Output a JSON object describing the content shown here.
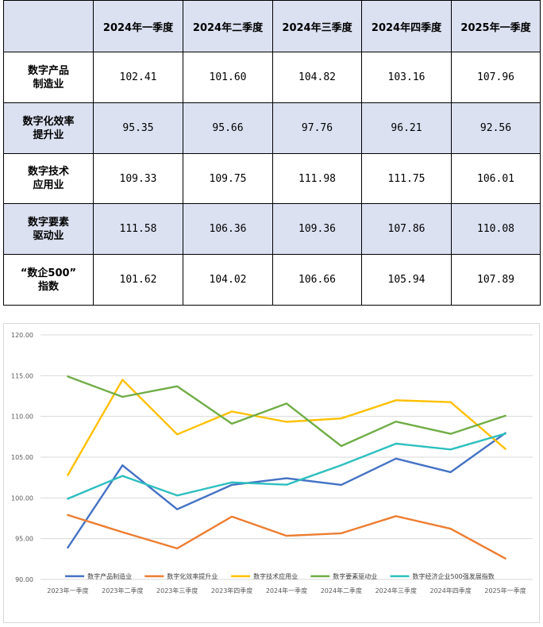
{
  "table": {
    "headers": [
      "2024年一季度",
      "2024年二季度",
      "2024年三季度",
      "2024年四季度",
      "2025年一季度"
    ],
    "rows": [
      {
        "label": [
          "数字产品",
          "制造业"
        ],
        "values": [
          "102.41",
          "101.60",
          "104.82",
          "103.16",
          "107.96"
        ]
      },
      {
        "label": [
          "数字化效率",
          "提升业"
        ],
        "values": [
          "95.35",
          "95.66",
          "97.76",
          "96.21",
          "92.56"
        ]
      },
      {
        "label": [
          "数字技术",
          "应用业"
        ],
        "values": [
          "109.33",
          "109.75",
          "111.98",
          "111.75",
          "106.01"
        ]
      },
      {
        "label": [
          "数字要素",
          "驱动业"
        ],
        "values": [
          "111.58",
          "106.36",
          "109.36",
          "107.86",
          "110.08"
        ]
      },
      {
        "label": [
          "“数企500”",
          "指数"
        ],
        "values": [
          "101.62",
          "104.02",
          "106.66",
          "105.94",
          "107.89"
        ]
      }
    ]
  },
  "chart_data": {
    "type": "line",
    "categories": [
      "2023年一季度",
      "2023年二季度",
      "2023年三季度",
      "2023年四季度",
      "2024年一季度",
      "2024年二季度",
      "2024年三季度",
      "2024年四季度",
      "2025年一季度"
    ],
    "ylim": [
      90,
      120
    ],
    "yticks": [
      "90.00",
      "95.00",
      "100.00",
      "105.00",
      "110.00",
      "115.00",
      "120.00"
    ],
    "grid": true,
    "legend_position": "bottom",
    "series": [
      {
        "name": "数字产品制造业",
        "color": "#4472c4",
        "values": [
          93.9,
          104.0,
          98.6,
          101.6,
          102.41,
          101.6,
          104.82,
          103.16,
          107.96
        ]
      },
      {
        "name": "数字化效率提升业",
        "color": "#ed7d31",
        "values": [
          97.9,
          95.8,
          93.8,
          97.7,
          95.35,
          95.66,
          97.76,
          96.21,
          92.56
        ]
      },
      {
        "name": "数字技术应用业",
        "color": "#ffc000",
        "values": [
          102.8,
          114.5,
          107.8,
          110.6,
          109.33,
          109.75,
          111.98,
          111.75,
          106.01
        ]
      },
      {
        "name": "数字要素驱动业",
        "color": "#70ad47",
        "values": [
          114.9,
          112.4,
          113.7,
          109.1,
          111.58,
          106.36,
          109.36,
          107.86,
          110.08
        ]
      },
      {
        "name": "数字经济企业500强发展指数",
        "color": "#2ebfbf",
        "values": [
          99.9,
          102.7,
          100.3,
          101.9,
          101.62,
          104.02,
          106.66,
          105.94,
          107.89
        ]
      }
    ]
  }
}
